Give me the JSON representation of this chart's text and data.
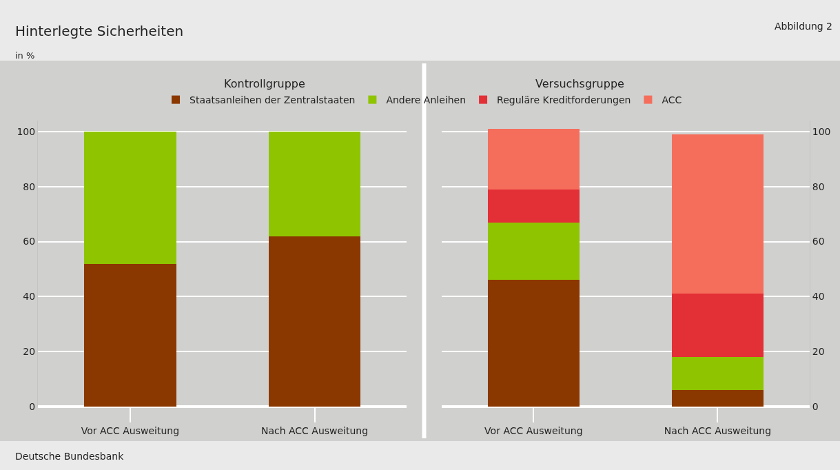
{
  "chart_data": [
    {
      "type": "bar",
      "title": "Kontrollgruppe",
      "ylabel": "in %",
      "annotations": [
        "Hinterlegte Sicherheiten",
        "Abbildung 2",
        "Deutsche Bundesbank"
      ],
      "categories": [
        "Vor ACC Ausweitung",
        "Nach ACC Ausweitung"
      ],
      "stacked": true,
      "ylim": [
        0,
        104
      ],
      "yticks": [
        0,
        20,
        40,
        60,
        80,
        100
      ],
      "grid": "y",
      "legend": "top",
      "series": [
        {
          "name": "Staatsanleihen der Zentralstaaten",
          "color": "#8b3700",
          "values": [
            52,
            62
          ]
        },
        {
          "name": "Andere Anleihen",
          "color": "#8fc400",
          "values": [
            48,
            38
          ]
        }
      ]
    },
    {
      "type": "bar",
      "title": "Versuchsgruppe",
      "categories": [
        "Vor ACC Ausweitung",
        "Nach ACC Ausweitung"
      ],
      "stacked": true,
      "ylim": [
        0,
        104
      ],
      "yticks": [
        0,
        20,
        40,
        60,
        80,
        100
      ],
      "grid": "y",
      "legend": "top",
      "series": [
        {
          "name": "Staatsanleihen der Zentralstaaten",
          "color": "#8b3700",
          "values": [
            46,
            6
          ]
        },
        {
          "name": "Andere Anleihen",
          "color": "#8fc400",
          "values": [
            21,
            12
          ]
        },
        {
          "name": "Reguläre Kreditforderungen",
          "color": "#e32f36",
          "values": [
            12,
            23
          ]
        },
        {
          "name": "ACC",
          "color": "#f56e5c",
          "values": [
            22,
            58
          ]
        }
      ]
    }
  ]
}
